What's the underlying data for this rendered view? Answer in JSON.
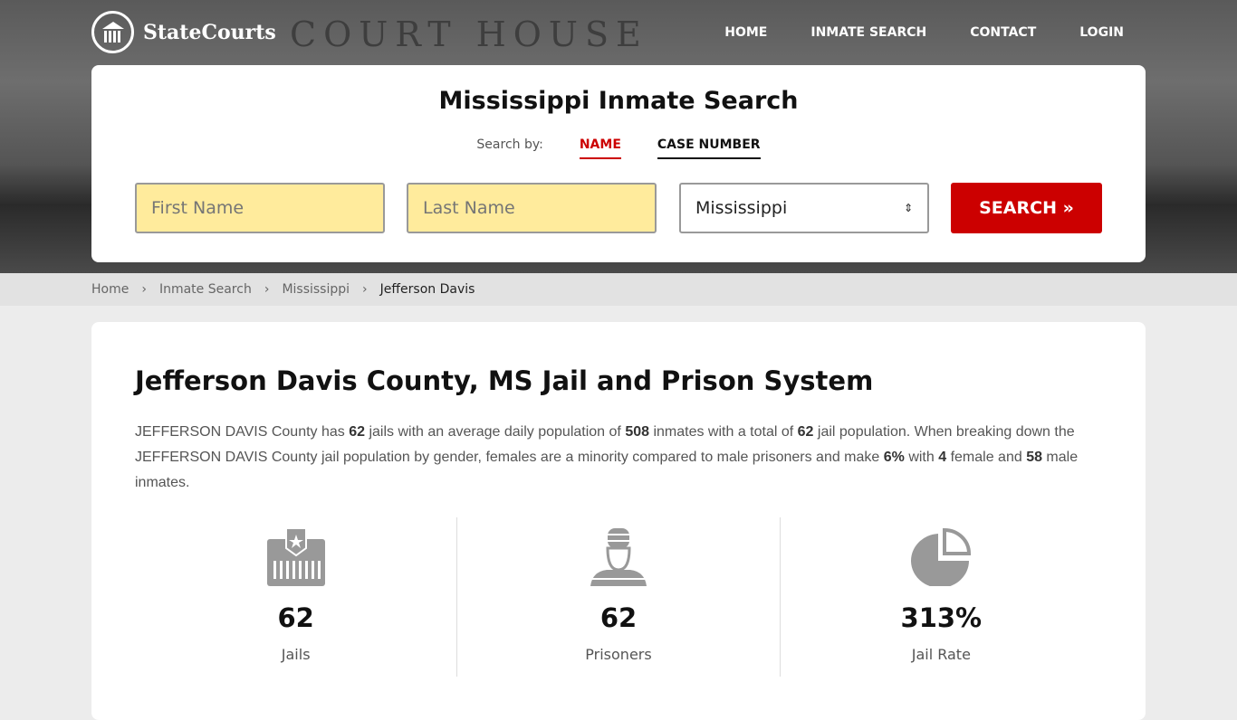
{
  "brand": "StateCourts",
  "hero_text": "COURT HOUSE",
  "nav": [
    "HOME",
    "INMATE SEARCH",
    "CONTACT",
    "LOGIN"
  ],
  "search": {
    "title": "Mississippi Inmate Search",
    "search_by": "Search by:",
    "tabs": [
      "NAME",
      "CASE NUMBER"
    ],
    "first_placeholder": "First Name",
    "last_placeholder": "Last Name",
    "state": "Mississippi",
    "button": "SEARCH »"
  },
  "breadcrumb": [
    "Home",
    "Inmate Search",
    "Mississippi",
    "Jefferson Davis"
  ],
  "main": {
    "title": "Jefferson Davis County, MS Jail and Prison System",
    "p": [
      "JEFFERSON DAVIS County has ",
      "62",
      " jails with an average daily population of ",
      "508",
      " inmates with a total of ",
      "62",
      " jail population. When breaking down the JEFFERSON DAVIS County jail population by gender, females are a minority compared to male prisoners and make ",
      "6%",
      " with ",
      "4",
      " female and ",
      "58",
      " male inmates."
    ],
    "stats": [
      {
        "value": "62",
        "label": "Jails",
        "icon": "jail-icon"
      },
      {
        "value": "62",
        "label": "Prisoners",
        "icon": "prisoner-icon"
      },
      {
        "value": "313%",
        "label": "Jail Rate",
        "icon": "pie-chart-icon"
      }
    ]
  }
}
